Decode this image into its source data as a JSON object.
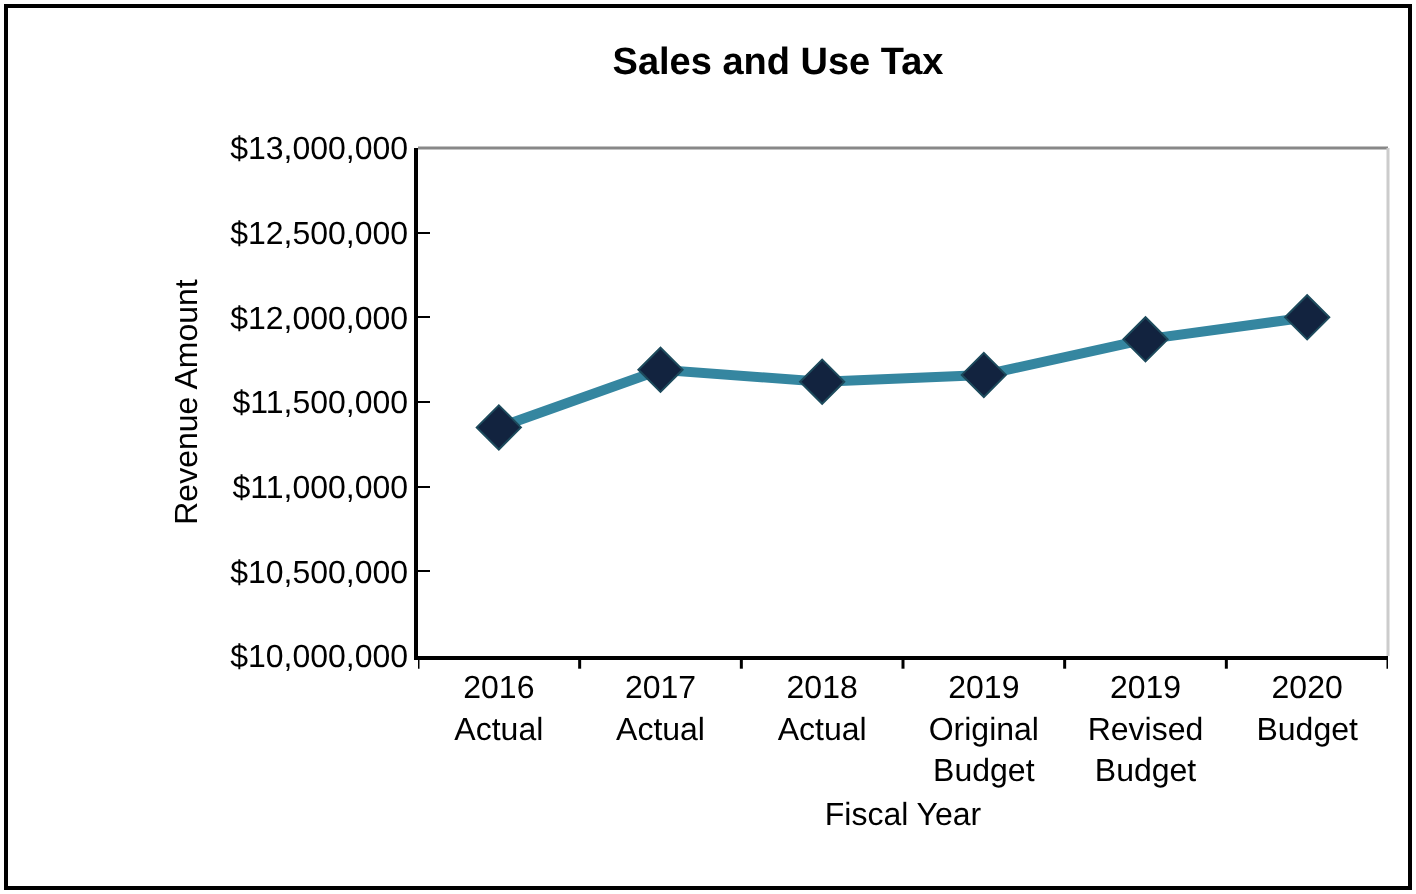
{
  "chart_data": {
    "type": "line",
    "title": "Sales and Use Tax",
    "xlabel": "Fiscal Year",
    "ylabel": "Revenue Amount",
    "categories": [
      "2016\nActual",
      "2017\nActual",
      "2018\nActual",
      "2019\nOriginal\nBudget",
      "2019\nRevised\nBudget",
      "2020\nBudget"
    ],
    "series": [
      {
        "color": "#3586a0",
        "values": [
          11350000,
          11690000,
          11620000,
          11660000,
          11870000,
          12000000
        ]
      }
    ],
    "marker": "diamond",
    "line_style": "solid",
    "grid": false,
    "ylim": [
      10000000,
      13000000
    ],
    "yticks": [
      {
        "value": 10000000,
        "label": "$10,000,000"
      },
      {
        "value": 10500000,
        "label": "$10,500,000"
      },
      {
        "value": 11000000,
        "label": "$11,000,000"
      },
      {
        "value": 11500000,
        "label": "$11,500,000"
      },
      {
        "value": 12000000,
        "label": "$12,000,000"
      },
      {
        "value": 12500000,
        "label": "$12,500,000"
      },
      {
        "value": 13000000,
        "label": "$13,000,000"
      }
    ]
  }
}
